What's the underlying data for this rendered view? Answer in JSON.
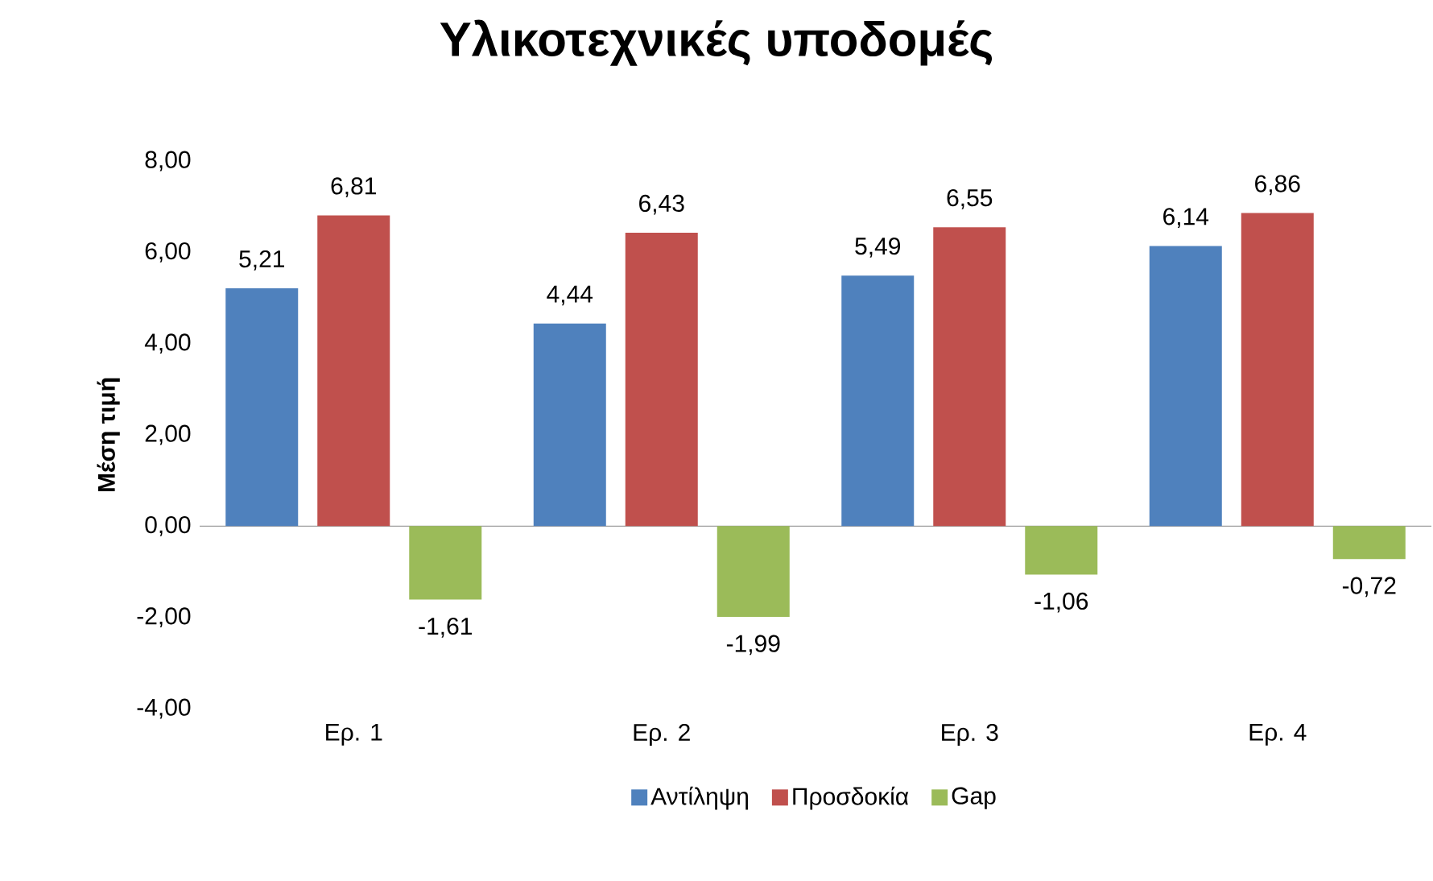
{
  "chart_data": {
    "type": "bar",
    "title": "Υλικοτεχνικές υποδομές",
    "ylabel": "Μέση τιμή",
    "categories": [
      "Ερ. 1",
      "Ερ. 2",
      "Ερ. 3",
      "Ερ. 4"
    ],
    "series": [
      {
        "name": "Αντίληψη",
        "color": "#4f81bd",
        "values": [
          5.21,
          4.44,
          5.49,
          6.14
        ],
        "value_labels": [
          "5,21",
          "4,44",
          "5,49",
          "6,14"
        ]
      },
      {
        "name": "Προσδοκία",
        "color": "#c0504d",
        "values": [
          6.81,
          6.43,
          6.55,
          6.86
        ],
        "value_labels": [
          "6,81",
          "6,43",
          "6,55",
          "6,86"
        ]
      },
      {
        "name": "Gap",
        "color": "#9bbb59",
        "values": [
          -1.61,
          -1.99,
          -1.06,
          -0.72
        ],
        "value_labels": [
          "-1,61",
          "-1,99",
          "-1,06",
          "-0,72"
        ]
      }
    ],
    "ylim": [
      -4,
      8
    ],
    "yticks": [
      {
        "value": -4,
        "label": "-4,00"
      },
      {
        "value": -2,
        "label": "-2,00"
      },
      {
        "value": 0,
        "label": "0,00"
      },
      {
        "value": 2,
        "label": "2,00"
      },
      {
        "value": 4,
        "label": "4,00"
      },
      {
        "value": 6,
        "label": "6,00"
      },
      {
        "value": 8,
        "label": "8,00"
      }
    ],
    "legend": "bottom"
  }
}
